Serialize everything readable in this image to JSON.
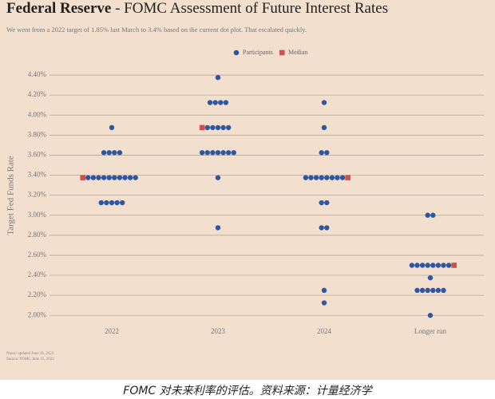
{
  "chart_data": {
    "type": "dotplot",
    "title_bold": "Federal Reserve",
    "title": " - FOMC Assessment of Future Interest Rates",
    "subtitle": "We went from a 2022 target of 1.85% last March to 3.4% based on the current dot plot. That escalated quickly.",
    "y_label": "Target Fed Funds Rate",
    "categories": [
      "2022",
      "2023",
      "2024",
      "Longer run"
    ],
    "series": [
      {
        "name": "Participants",
        "color": "#2f56a3",
        "values": [
          [
            {
              "rate": 3.875,
              "count": 1
            },
            {
              "rate": 3.625,
              "count": 4
            },
            {
              "rate": 3.375,
              "count": 10
            },
            {
              "rate": 3.125,
              "count": 5
            }
          ],
          [
            {
              "rate": 4.375,
              "count": 1
            },
            {
              "rate": 4.125,
              "count": 4
            },
            {
              "rate": 3.875,
              "count": 5
            },
            {
              "rate": 3.625,
              "count": 7
            },
            {
              "rate": 3.375,
              "count": 1
            },
            {
              "rate": 2.875,
              "count": 1
            }
          ],
          [
            {
              "rate": 4.125,
              "count": 1
            },
            {
              "rate": 3.875,
              "count": 1
            },
            {
              "rate": 3.625,
              "count": 2
            },
            {
              "rate": 3.375,
              "count": 8
            },
            {
              "rate": 3.125,
              "count": 2
            },
            {
              "rate": 2.875,
              "count": 2
            },
            {
              "rate": 2.25,
              "count": 1
            },
            {
              "rate": 2.125,
              "count": 1
            }
          ],
          [
            {
              "rate": 3.0,
              "count": 2
            },
            {
              "rate": 2.5,
              "count": 8
            },
            {
              "rate": 2.375,
              "count": 1
            },
            {
              "rate": 2.25,
              "count": 6
            },
            {
              "rate": 2.0,
              "count": 1
            }
          ]
        ]
      },
      {
        "name": "Median",
        "color": "#d0504a",
        "values": [
          3.375,
          3.875,
          3.375,
          2.5
        ],
        "sides": [
          "left",
          "left",
          "right",
          "right"
        ]
      }
    ],
    "ylim": [
      1.93,
      4.48
    ],
    "yticks": [
      {
        "value": 2.0,
        "label": "2.00%"
      },
      {
        "value": 2.2,
        "label": "2.20%"
      },
      {
        "value": 2.4,
        "label": "2.40%"
      },
      {
        "value": 2.6,
        "label": "2.60%"
      },
      {
        "value": 2.8,
        "label": "2.80%"
      },
      {
        "value": 3.0,
        "label": "3.00%"
      },
      {
        "value": 3.2,
        "label": "3.20%"
      },
      {
        "value": 3.4,
        "label": "3.40%"
      },
      {
        "value": 3.6,
        "label": "3.60%"
      },
      {
        "value": 3.8,
        "label": "3.80%"
      },
      {
        "value": 4.0,
        "label": "4.00%"
      },
      {
        "value": 4.2,
        "label": "4.20%"
      },
      {
        "value": 4.4,
        "label": "4.40%"
      }
    ],
    "grid": true,
    "legend": "top",
    "notes": [
      "Notes: updated June 16, 2022",
      "Source: FOMC June 15, 2022"
    ],
    "caption": "FOMC 对未来利率的评估。资料来源：计量经济学"
  }
}
